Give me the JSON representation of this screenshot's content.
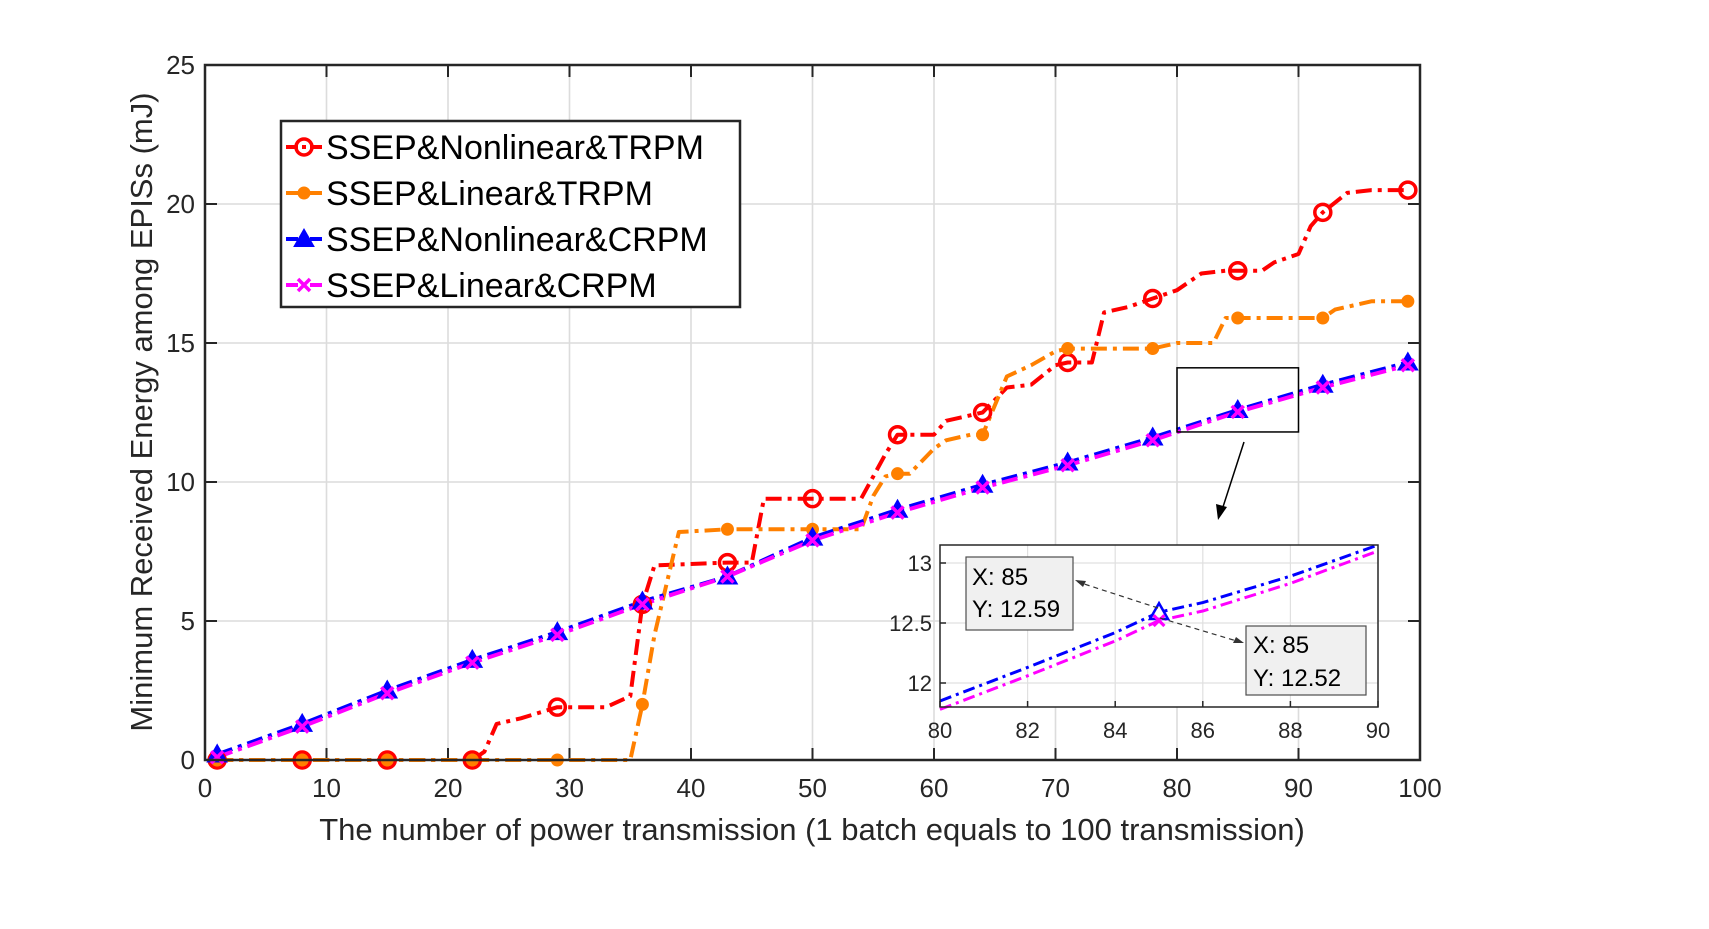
{
  "chart_data": [
    {
      "type": "line",
      "title": "",
      "xlabel": "The number of power transmission (1 batch equals to 100 transmission)",
      "ylabel": "Minimum Received Energy among EPISs (mJ)",
      "xlim": [
        0,
        100
      ],
      "ylim": [
        0,
        25
      ],
      "xticks": [
        0,
        10,
        20,
        30,
        40,
        50,
        60,
        70,
        80,
        90,
        100
      ],
      "yticks": [
        0,
        5,
        10,
        15,
        20,
        25
      ],
      "grid": true,
      "legend_position": "top-left",
      "series": [
        {
          "name": "SSEP&Nonlinear&TRPM",
          "color": "#ff0000",
          "marker": "circle",
          "line": "dash-dot",
          "x": [
            1,
            22,
            23,
            24,
            26,
            29,
            33,
            35,
            36,
            37,
            43,
            45,
            46,
            50,
            54,
            56,
            57,
            60,
            61,
            63,
            64,
            66,
            68,
            70,
            71,
            73,
            74,
            76,
            78,
            80,
            82,
            84,
            85,
            87,
            88,
            90,
            91,
            92,
            94,
            96,
            99
          ],
          "y": [
            0,
            0,
            0.3,
            1.3,
            1.5,
            1.9,
            1.9,
            2.3,
            5.6,
            7.0,
            7.1,
            7.1,
            9.4,
            9.4,
            9.4,
            11.0,
            11.7,
            11.7,
            12.2,
            12.4,
            12.5,
            13.4,
            13.5,
            14.2,
            14.3,
            14.3,
            16.1,
            16.3,
            16.6,
            16.9,
            17.5,
            17.6,
            17.6,
            17.6,
            17.9,
            18.2,
            19.2,
            19.7,
            20.4,
            20.5,
            20.5
          ],
          "marker_x": [
            1,
            8,
            15,
            22,
            29,
            36,
            43,
            50,
            57,
            64,
            71,
            78,
            85,
            92,
            99
          ]
        },
        {
          "name": "SSEP&Linear&TRPM",
          "color": "#ff8000",
          "marker": "dot",
          "line": "dash-dot",
          "x": [
            1,
            29,
            35,
            36,
            37,
            39,
            43,
            50,
            54,
            55,
            56,
            57,
            58,
            60,
            61,
            63,
            64,
            66,
            68,
            70,
            71,
            78,
            79,
            80,
            83,
            84,
            85,
            92,
            93,
            96,
            99
          ],
          "y": [
            0,
            0,
            0,
            2.0,
            4.5,
            8.2,
            8.3,
            8.3,
            8.3,
            9.5,
            10.2,
            10.3,
            10.3,
            11.2,
            11.5,
            11.7,
            11.7,
            13.8,
            14.2,
            14.7,
            14.8,
            14.8,
            14.9,
            15.0,
            15.0,
            15.9,
            15.9,
            15.9,
            16.2,
            16.5,
            16.5
          ],
          "marker_x": [
            1,
            8,
            15,
            22,
            29,
            36,
            43,
            50,
            57,
            64,
            71,
            78,
            85,
            92,
            99
          ]
        },
        {
          "name": "SSEP&Nonlinear&CRPM",
          "color": "#0000ff",
          "marker": "triangle",
          "line": "dash-dot",
          "x": [
            1,
            8,
            15,
            22,
            29,
            36,
            43,
            50,
            57,
            64,
            71,
            78,
            85,
            92,
            99
          ],
          "y": [
            0.2,
            1.3,
            2.5,
            3.6,
            4.6,
            5.7,
            6.6,
            8.0,
            9.0,
            9.9,
            10.7,
            11.6,
            12.59,
            13.5,
            14.3
          ],
          "marker_x": [
            1,
            8,
            15,
            22,
            29,
            36,
            43,
            50,
            57,
            64,
            71,
            78,
            85,
            92,
            99
          ]
        },
        {
          "name": "SSEP&Linear&CRPM",
          "color": "#ff00ff",
          "marker": "x",
          "line": "dash-dot",
          "x": [
            1,
            8,
            15,
            22,
            29,
            36,
            43,
            50,
            57,
            64,
            71,
            78,
            85,
            92,
            99
          ],
          "y": [
            0.1,
            1.2,
            2.4,
            3.5,
            4.5,
            5.6,
            6.6,
            7.9,
            8.9,
            9.8,
            10.6,
            11.5,
            12.52,
            13.4,
            14.2
          ],
          "marker_x": [
            1,
            8,
            15,
            22,
            29,
            36,
            43,
            50,
            57,
            64,
            71,
            78,
            85,
            92,
            99
          ]
        }
      ],
      "zoom_region": {
        "xlim": [
          80,
          90
        ],
        "ylim": [
          11.8,
          13.1
        ]
      }
    },
    {
      "type": "line",
      "title": "",
      "xlim": [
        80,
        90
      ],
      "ylim": [
        11.8,
        13.15
      ],
      "xticks": [
        80,
        82,
        84,
        86,
        88,
        90
      ],
      "yticks": [
        12,
        12.5,
        13
      ],
      "ytick_labels": [
        "12",
        "12.5",
        "13"
      ],
      "grid": true,
      "series": [
        {
          "color": "#0000ff",
          "line": "dash-dot",
          "x": [
            80,
            82,
            84,
            85,
            86,
            88,
            90
          ],
          "y": [
            11.85,
            12.13,
            12.42,
            12.59,
            12.67,
            12.89,
            13.15
          ]
        },
        {
          "color": "#ff00ff",
          "line": "dash-dot",
          "x": [
            80,
            82,
            84,
            85,
            86,
            88,
            90
          ],
          "y": [
            11.78,
            12.06,
            12.35,
            12.52,
            12.6,
            12.83,
            13.1
          ]
        }
      ],
      "datatips": [
        {
          "x_label": "X: 85",
          "y_label": "Y: 12.59",
          "x": 85,
          "y": 12.59,
          "series": 0
        },
        {
          "x_label": "X: 85",
          "y_label": "Y: 12.52",
          "x": 85,
          "y": 12.52,
          "series": 1
        }
      ]
    }
  ]
}
